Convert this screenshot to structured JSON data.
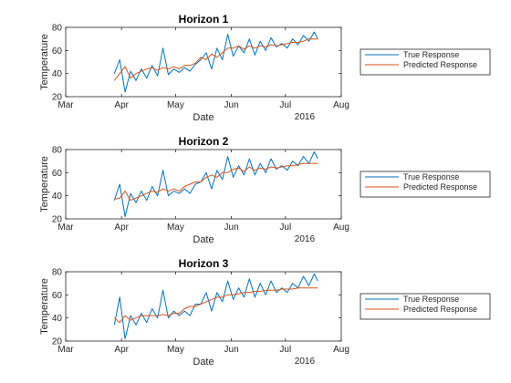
{
  "colors": {
    "true_response": "#0072BD",
    "predicted_response": "#D95319",
    "axes": "#262626",
    "background": "#ffffff"
  },
  "chart_data": [
    {
      "type": "line",
      "title": "Horizon 1",
      "xlabel": "Date",
      "ylabel": "Temperature",
      "year_label": "2016",
      "x_tick_labels": [
        "Mar",
        "Apr",
        "May",
        "Jun",
        "Jul",
        "Aug"
      ],
      "xlim": [
        "2016-03-01",
        "2016-08-01"
      ],
      "ylim": [
        20,
        80
      ],
      "y_ticks": [
        20,
        40,
        60,
        80
      ],
      "grid": false,
      "legend_position": "right",
      "x": [
        "2016-03-28",
        "2016-03-31",
        "2016-04-03",
        "2016-04-06",
        "2016-04-09",
        "2016-04-12",
        "2016-04-15",
        "2016-04-18",
        "2016-04-21",
        "2016-04-24",
        "2016-04-27",
        "2016-04-30",
        "2016-05-03",
        "2016-05-06",
        "2016-05-09",
        "2016-05-12",
        "2016-05-15",
        "2016-05-18",
        "2016-05-21",
        "2016-05-24",
        "2016-05-27",
        "2016-05-30",
        "2016-06-02",
        "2016-06-05",
        "2016-06-08",
        "2016-06-11",
        "2016-06-14",
        "2016-06-17",
        "2016-06-20",
        "2016-06-23",
        "2016-06-26",
        "2016-06-29",
        "2016-07-02",
        "2016-07-05",
        "2016-07-08",
        "2016-07-11",
        "2016-07-14",
        "2016-07-17",
        "2016-07-19"
      ],
      "series": [
        {
          "name": "True Response",
          "values": [
            40,
            52,
            24,
            42,
            34,
            44,
            36,
            47,
            38,
            62,
            39,
            44,
            41,
            45,
            42,
            48,
            52,
            58,
            44,
            62,
            52,
            74,
            55,
            64,
            58,
            70,
            56,
            68,
            60,
            71,
            63,
            66,
            62,
            70,
            65,
            73,
            68,
            76,
            70
          ]
        },
        {
          "name": "Predicted Response",
          "values": [
            34,
            40,
            46,
            36,
            40,
            42,
            44,
            45,
            43,
            45,
            44,
            46,
            44,
            47,
            47,
            49,
            54,
            52,
            57,
            54,
            58,
            62,
            62,
            64,
            61,
            64,
            62,
            64,
            63,
            65,
            64,
            65,
            66,
            67,
            67,
            68,
            70,
            70,
            70
          ]
        }
      ]
    },
    {
      "type": "line",
      "title": "Horizon 2",
      "xlabel": "Date",
      "ylabel": "Temperature",
      "year_label": "2016",
      "x_tick_labels": [
        "Mar",
        "Apr",
        "May",
        "Jun",
        "Jul",
        "Aug"
      ],
      "xlim": [
        "2016-03-01",
        "2016-08-01"
      ],
      "ylim": [
        20,
        80
      ],
      "y_ticks": [
        20,
        40,
        60,
        80
      ],
      "grid": false,
      "legend_position": "right",
      "x": [
        "2016-03-28",
        "2016-03-31",
        "2016-04-03",
        "2016-04-06",
        "2016-04-09",
        "2016-04-12",
        "2016-04-15",
        "2016-04-18",
        "2016-04-21",
        "2016-04-24",
        "2016-04-27",
        "2016-04-30",
        "2016-05-03",
        "2016-05-06",
        "2016-05-09",
        "2016-05-12",
        "2016-05-15",
        "2016-05-18",
        "2016-05-21",
        "2016-05-24",
        "2016-05-27",
        "2016-05-30",
        "2016-06-02",
        "2016-06-05",
        "2016-06-08",
        "2016-06-11",
        "2016-06-14",
        "2016-06-17",
        "2016-06-20",
        "2016-06-23",
        "2016-06-26",
        "2016-06-29",
        "2016-07-02",
        "2016-07-05",
        "2016-07-08",
        "2016-07-11",
        "2016-07-14",
        "2016-07-17",
        "2016-07-19"
      ],
      "series": [
        {
          "name": "True Response",
          "values": [
            36,
            50,
            22,
            42,
            34,
            44,
            36,
            48,
            40,
            62,
            40,
            44,
            42,
            46,
            42,
            50,
            52,
            60,
            46,
            62,
            54,
            74,
            56,
            66,
            58,
            72,
            58,
            68,
            60,
            72,
            63,
            66,
            62,
            70,
            66,
            74,
            68,
            78,
            72
          ]
        },
        {
          "name": "Predicted Response",
          "values": [
            37,
            38,
            44,
            36,
            38,
            40,
            42,
            44,
            43,
            46,
            44,
            46,
            44,
            48,
            50,
            52,
            52,
            56,
            58,
            56,
            60,
            60,
            63,
            64,
            61,
            65,
            62,
            64,
            63,
            65,
            64,
            65,
            66,
            66,
            67,
            68,
            68,
            68,
            68
          ]
        }
      ]
    },
    {
      "type": "line",
      "title": "Horizon 3",
      "xlabel": "Date",
      "ylabel": "Temperature",
      "year_label": "2016",
      "x_tick_labels": [
        "Mar",
        "Apr",
        "May",
        "Jun",
        "Jul",
        "Aug"
      ],
      "xlim": [
        "2016-03-01",
        "2016-08-01"
      ],
      "ylim": [
        20,
        80
      ],
      "y_ticks": [
        20,
        40,
        60,
        80
      ],
      "grid": false,
      "legend_position": "right",
      "x": [
        "2016-03-28",
        "2016-03-31",
        "2016-04-03",
        "2016-04-06",
        "2016-04-09",
        "2016-04-12",
        "2016-04-15",
        "2016-04-18",
        "2016-04-21",
        "2016-04-24",
        "2016-04-27",
        "2016-04-30",
        "2016-05-03",
        "2016-05-06",
        "2016-05-09",
        "2016-05-12",
        "2016-05-15",
        "2016-05-18",
        "2016-05-21",
        "2016-05-24",
        "2016-05-27",
        "2016-05-30",
        "2016-06-02",
        "2016-06-05",
        "2016-06-08",
        "2016-06-11",
        "2016-06-14",
        "2016-06-17",
        "2016-06-20",
        "2016-06-23",
        "2016-06-26",
        "2016-06-29",
        "2016-07-02",
        "2016-07-05",
        "2016-07-08",
        "2016-07-11",
        "2016-07-14",
        "2016-07-17",
        "2016-07-19"
      ],
      "series": [
        {
          "name": "True Response",
          "values": [
            34,
            58,
            22,
            42,
            34,
            44,
            36,
            48,
            40,
            64,
            40,
            46,
            42,
            46,
            42,
            52,
            52,
            62,
            46,
            62,
            54,
            72,
            56,
            66,
            58,
            74,
            58,
            70,
            60,
            72,
            62,
            66,
            62,
            70,
            66,
            76,
            68,
            78,
            72
          ]
        },
        {
          "name": "Predicted Response",
          "values": [
            40,
            36,
            42,
            38,
            40,
            42,
            42,
            42,
            42,
            43,
            42,
            44,
            44,
            48,
            50,
            50,
            52,
            54,
            56,
            58,
            58,
            60,
            60,
            61,
            62,
            62,
            63,
            63,
            64,
            64,
            64,
            65,
            65,
            65,
            66,
            66,
            66,
            66,
            66
          ]
        }
      ]
    }
  ]
}
